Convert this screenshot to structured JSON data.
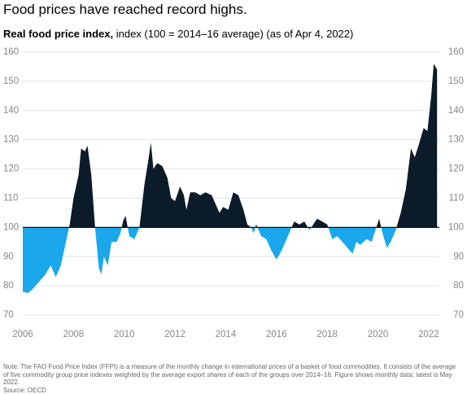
{
  "chart_data": {
    "type": "area",
    "title": "Food prices have reached record highs.",
    "subtitle_bold": "Real food price index,",
    "subtitle": "index (100 = 2014–16 average) (as of Apr 4, 2022)",
    "note": "Note: The FAO Food Price Index (FFPI) is a measure of the monthly change in international prices of a basket of food commodities. It consists of the average of five commodity group price indexes weighted by the average export shares of each of the groups over 2014–16. Figure shows monthly data; latest is May 2022.",
    "source": "Source: OECD",
    "baseline": 100,
    "above_color": "#0b1b29",
    "below_color": "#1aa7ec",
    "xlim": [
      2006,
      2022.42
    ],
    "xticks": [
      2006,
      2008,
      2010,
      2012,
      2014,
      2016,
      2018,
      2020,
      2022
    ],
    "ylim": [
      70,
      160
    ],
    "yticks": [
      70,
      80,
      90,
      100,
      110,
      120,
      130,
      140,
      150,
      160
    ],
    "y2lim": [
      70,
      160
    ],
    "y2ticks": [
      70,
      80,
      90,
      100,
      110,
      120,
      130,
      140,
      150,
      160
    ],
    "grid": true,
    "x": [
      2006.0,
      2006.2,
      2006.4,
      2006.6,
      2006.9,
      2007.1,
      2007.3,
      2007.5,
      2007.7,
      2007.85,
      2008.0,
      2008.2,
      2008.3,
      2008.45,
      2008.55,
      2008.7,
      2008.85,
      2009.0,
      2009.1,
      2009.2,
      2009.35,
      2009.5,
      2009.7,
      2009.85,
      2009.95,
      2010.05,
      2010.2,
      2010.4,
      2010.6,
      2010.8,
      2010.95,
      2011.05,
      2011.15,
      2011.3,
      2011.5,
      2011.7,
      2011.85,
      2012.0,
      2012.2,
      2012.35,
      2012.45,
      2012.6,
      2012.8,
      2013.0,
      2013.2,
      2013.45,
      2013.6,
      2013.75,
      2013.9,
      2014.1,
      2014.3,
      2014.5,
      2014.7,
      2014.85,
      2015.0,
      2015.1,
      2015.2,
      2015.4,
      2015.6,
      2015.8,
      2016.0,
      2016.2,
      2016.4,
      2016.55,
      2016.7,
      2016.9,
      2017.1,
      2017.3,
      2017.45,
      2017.6,
      2017.8,
      2018.0,
      2018.2,
      2018.4,
      2018.6,
      2018.8,
      2019.0,
      2019.15,
      2019.3,
      2019.55,
      2019.75,
      2019.9,
      2020.05,
      2020.15,
      2020.35,
      2020.5,
      2020.7,
      2020.9,
      2021.1,
      2021.3,
      2021.45,
      2021.6,
      2021.8,
      2021.95,
      2022.1,
      2022.2,
      2022.33
    ],
    "values": [
      78,
      77.5,
      79,
      81,
      84,
      87,
      83,
      87,
      95,
      101,
      110,
      118,
      127,
      126,
      128,
      118,
      100,
      86,
      84,
      90,
      87,
      95,
      95,
      98,
      102,
      104,
      97,
      96,
      100,
      115,
      123,
      129,
      120,
      122,
      121,
      117,
      110,
      109,
      114,
      111,
      106,
      112,
      112,
      111,
      112,
      111,
      108,
      105,
      107,
      106,
      112,
      111,
      106,
      101,
      100,
      98,
      101,
      97,
      96,
      92,
      89,
      92,
      96,
      99,
      102,
      101,
      102,
      99,
      101,
      103,
      102,
      101,
      96,
      97,
      95,
      93,
      91,
      95,
      94,
      96,
      95,
      99,
      103,
      99,
      93,
      95,
      99,
      105,
      113,
      127,
      124,
      128,
      134,
      133,
      145,
      156,
      154
    ]
  }
}
